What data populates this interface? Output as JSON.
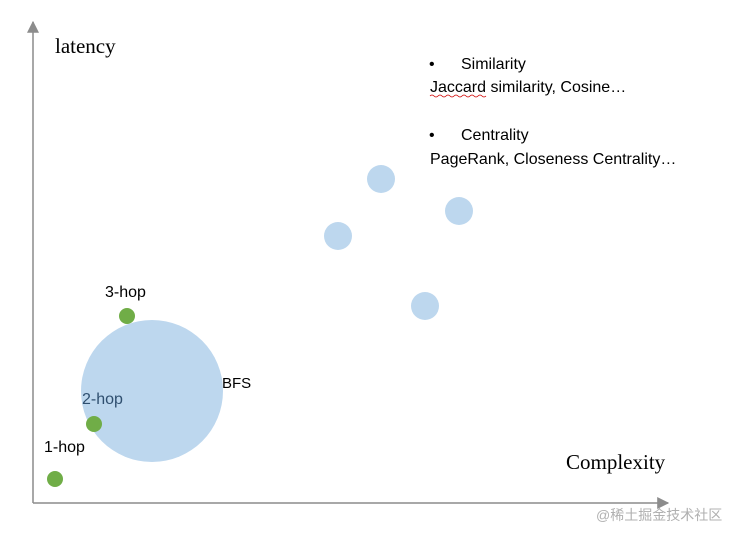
{
  "axes": {
    "y_label": "latency",
    "x_label": "Complexity"
  },
  "legend_text": {
    "item1_bullet": "•",
    "item1_title": "Similarity",
    "item1_desc_part1": "Jaccard",
    "item1_desc_part2": " similarity, Cosine…",
    "item2_bullet": "•",
    "item2_title": "Centrality",
    "item2_desc": "PageRank, Closeness Centrality…"
  },
  "labels": {
    "bfs": "BFS",
    "hop1": "1-hop",
    "hop2": "2-hop",
    "hop3": "3-hop"
  },
  "watermark": "@稀土掘金技术社区",
  "colors": {
    "axis": "#8c8c8c",
    "bubble": "#bdd7ee",
    "hop_dot": "#70ad47",
    "text": "#000000",
    "hop2_text": "#2f4f6f",
    "spellcheck": "#d00000",
    "watermark": "#b0b0b0"
  }
}
